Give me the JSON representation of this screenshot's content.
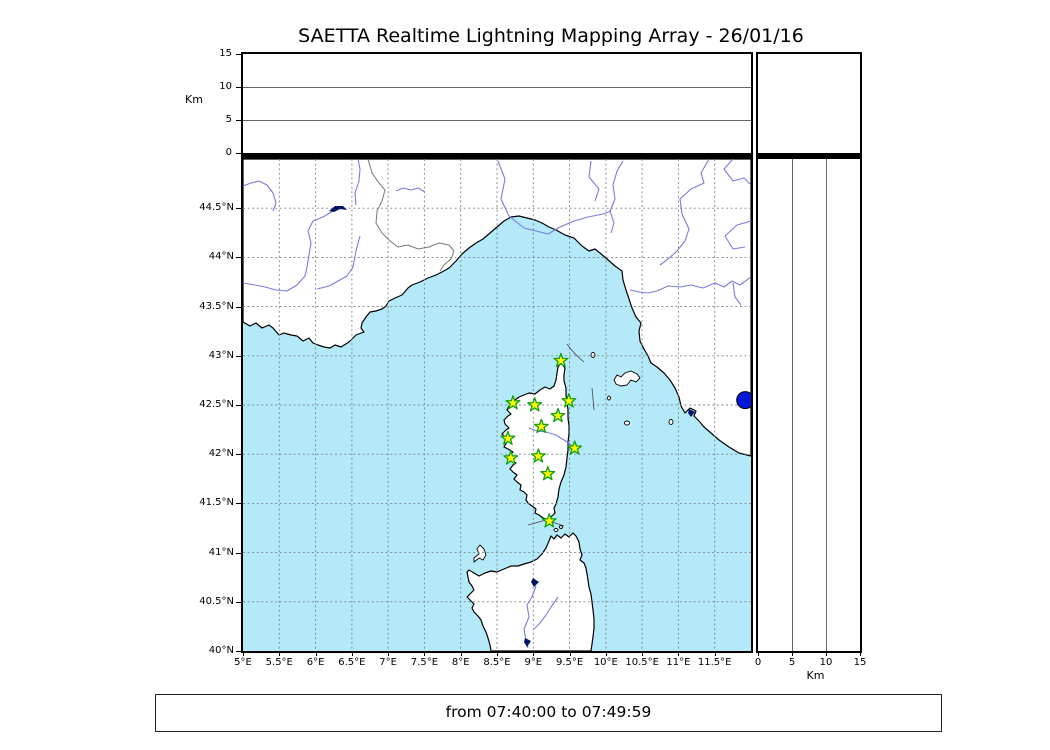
{
  "title": "SAETTA Realtime Lightning Mapping Array - 26/01/16",
  "footer": {
    "time_range": "from 07:40:00 to 07:49:59"
  },
  "altitude_axis": {
    "label": "Km",
    "max": 15,
    "ticks": [
      {
        "v": 0,
        "label": "0"
      },
      {
        "v": 5,
        "label": "5"
      },
      {
        "v": 10,
        "label": "10"
      },
      {
        "v": 15,
        "label": "15"
      }
    ]
  },
  "map": {
    "lon_min": 5,
    "lon_max": 12,
    "lat_min": 40,
    "lat_max": 45,
    "lon_ticks": [
      {
        "v": 5,
        "label": "5°E"
      },
      {
        "v": 5.5,
        "label": "5.5°E"
      },
      {
        "v": 6,
        "label": "6°E"
      },
      {
        "v": 6.5,
        "label": "6.5°E"
      },
      {
        "v": 7,
        "label": "7°E"
      },
      {
        "v": 7.5,
        "label": "7.5°E"
      },
      {
        "v": 8,
        "label": "8°E"
      },
      {
        "v": 8.5,
        "label": "8.5°E"
      },
      {
        "v": 9,
        "label": "9°E"
      },
      {
        "v": 9.5,
        "label": "9.5°E"
      },
      {
        "v": 10,
        "label": "10°E"
      },
      {
        "v": 10.5,
        "label": "10.5°E"
      },
      {
        "v": 11,
        "label": "11°E"
      },
      {
        "v": 11.5,
        "label": "11.5°E"
      }
    ],
    "lat_ticks": [
      {
        "v": 44.5,
        "label": "44.5°N"
      },
      {
        "v": 44,
        "label": "44°N"
      },
      {
        "v": 43.5,
        "label": "43.5°N"
      },
      {
        "v": 43,
        "label": "43°N"
      },
      {
        "v": 42.5,
        "label": "42.5°N"
      },
      {
        "v": 42,
        "label": "42°N"
      },
      {
        "v": 41.5,
        "label": "41.5°N"
      },
      {
        "v": 41,
        "label": "41°N"
      },
      {
        "v": 40.5,
        "label": "40.5°N"
      },
      {
        "v": 40,
        "label": "40°N"
      }
    ],
    "colors": {
      "sea": "#b3e9f8",
      "land": "#ffffff",
      "coast": "#000000",
      "grid": "#7d868c",
      "river": "#7b7be0",
      "lake": "#001466",
      "border": "#777777",
      "station_fill": "#ffff00",
      "station_edge": "#0f9f0f",
      "event_marker": "#0016d9"
    },
    "stations": [
      {
        "lon": 9.38,
        "lat": 42.95
      },
      {
        "lon": 8.72,
        "lat": 42.52
      },
      {
        "lon": 9.02,
        "lat": 42.5
      },
      {
        "lon": 9.49,
        "lat": 42.54
      },
      {
        "lon": 9.34,
        "lat": 42.39
      },
      {
        "lon": 9.11,
        "lat": 42.28
      },
      {
        "lon": 8.65,
        "lat": 42.16
      },
      {
        "lon": 9.57,
        "lat": 42.06
      },
      {
        "lon": 8.69,
        "lat": 41.96
      },
      {
        "lon": 9.07,
        "lat": 41.98
      },
      {
        "lon": 9.2,
        "lat": 41.8
      },
      {
        "lon": 9.22,
        "lat": 41.32
      }
    ],
    "event_marker": {
      "lon": 11.92,
      "lat": 42.55
    }
  }
}
